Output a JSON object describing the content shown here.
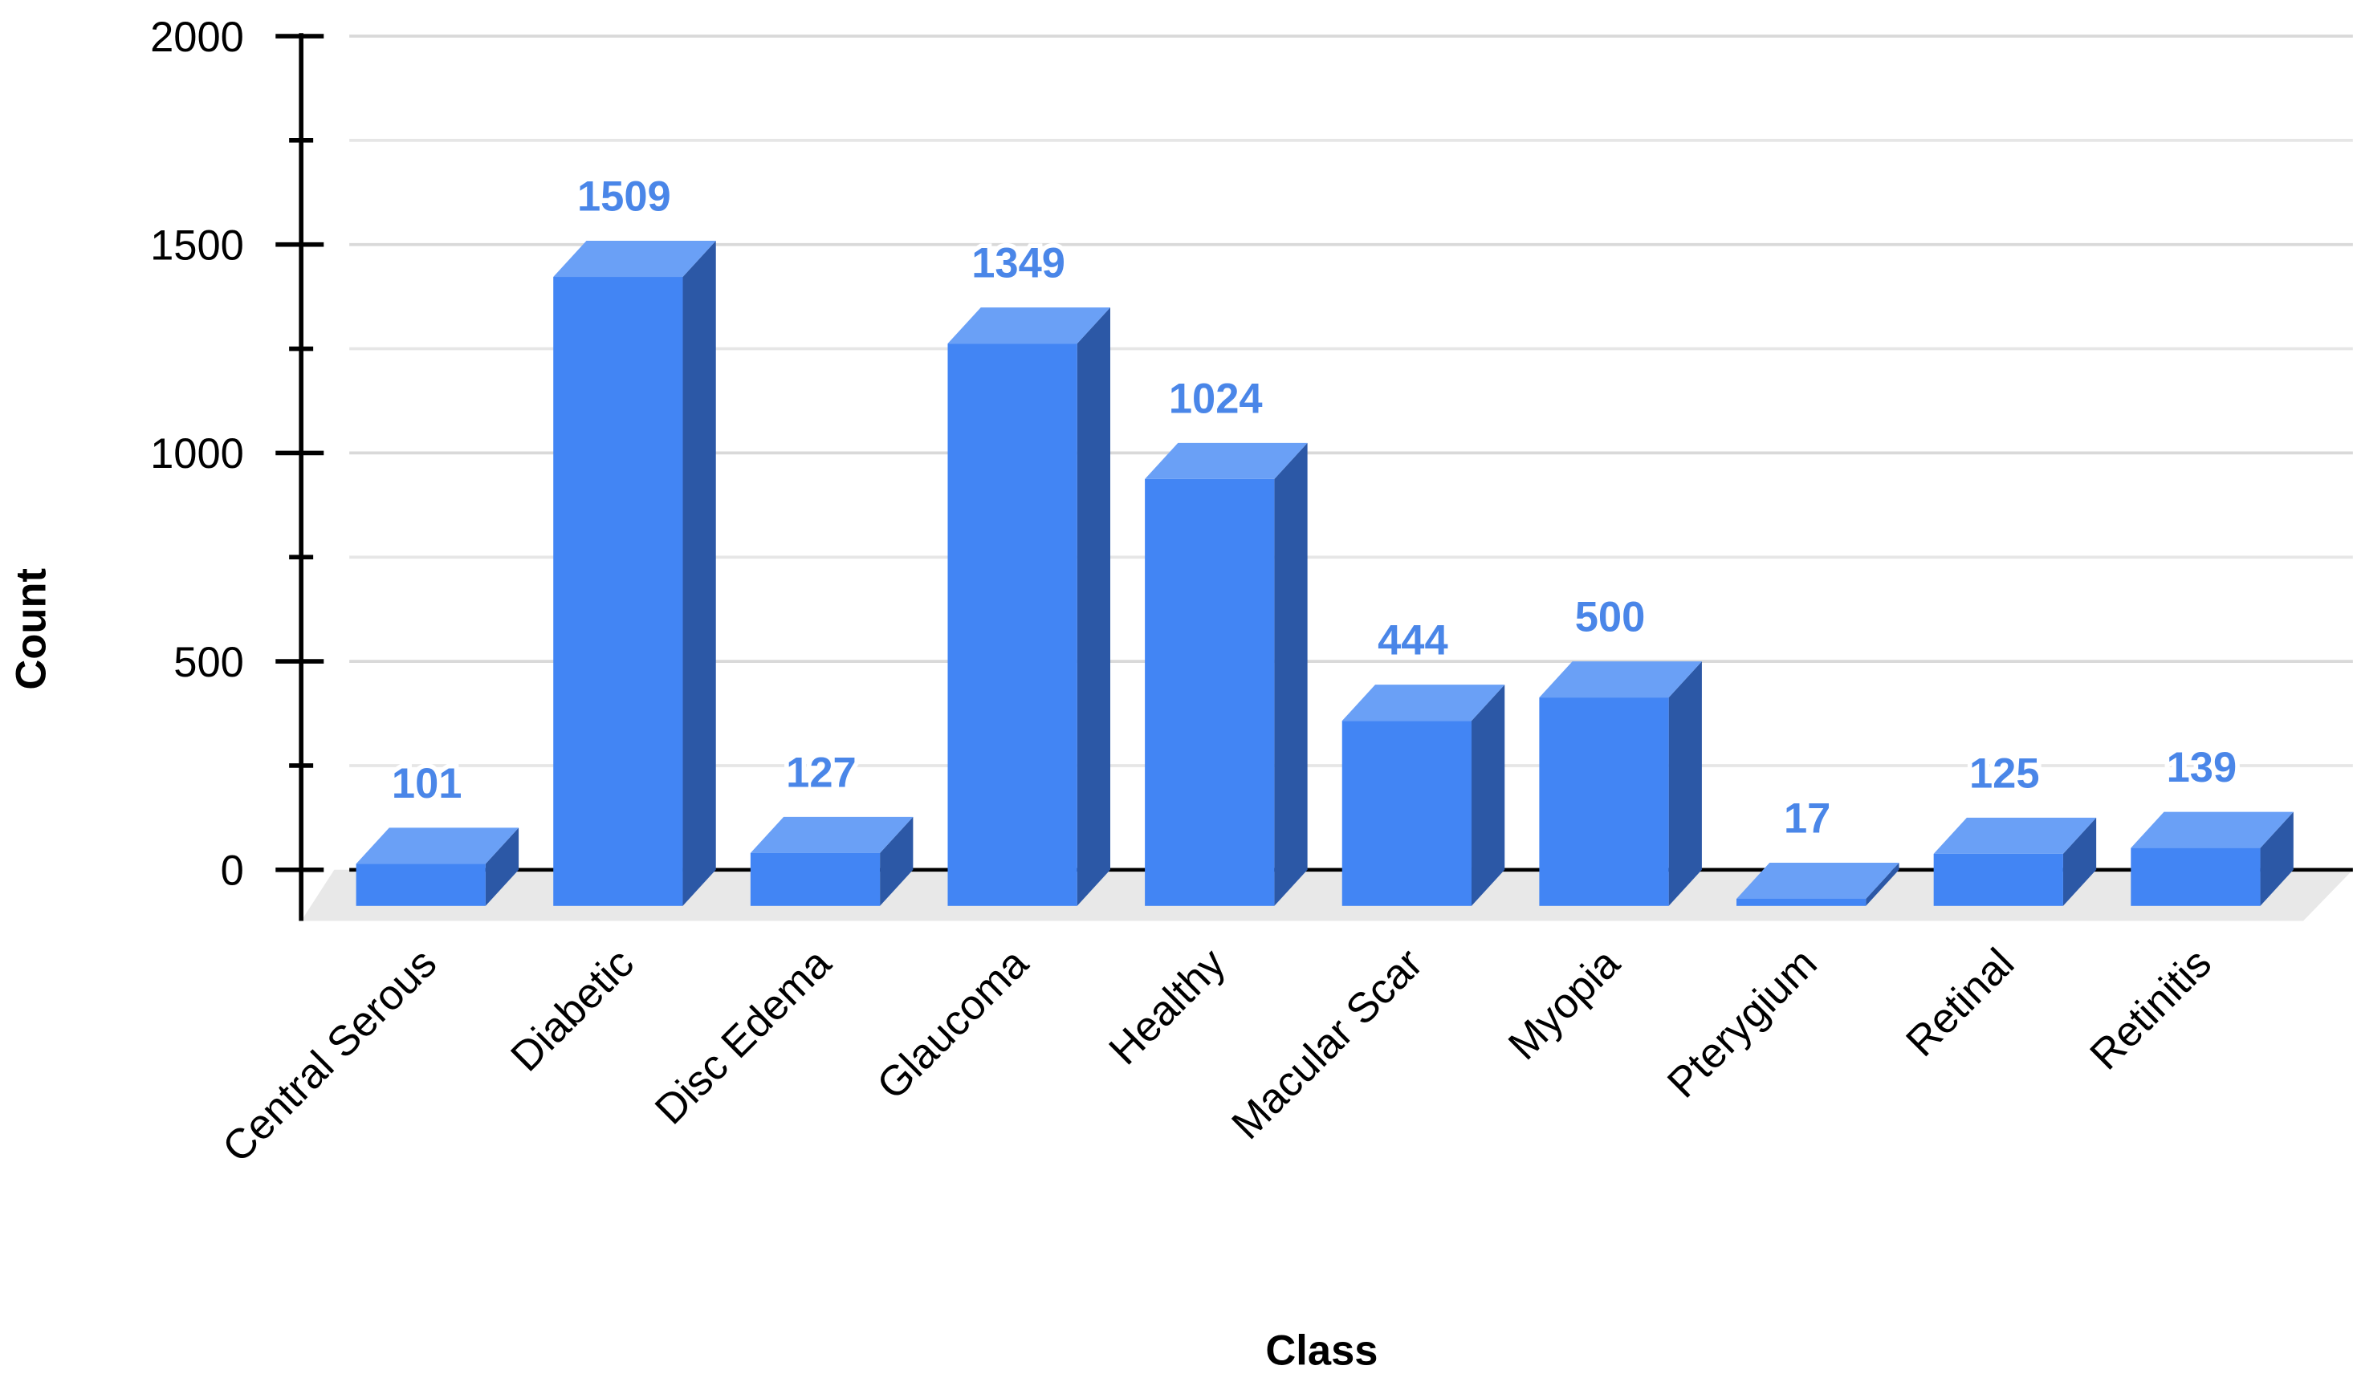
{
  "chart_data": {
    "type": "bar3d",
    "x_label": "Class",
    "y_label": "Count",
    "categories": [
      "Central Serous",
      "Diabetic",
      "Disc Edema",
      "Glaucoma",
      "Healthy",
      "Macular Scar",
      "Myopia",
      "Pterygium",
      "Retinal",
      "Retinitis"
    ],
    "values": [
      101,
      1509,
      127,
      1349,
      1024,
      444,
      500,
      17,
      125,
      139
    ],
    "color": "#4285f4",
    "ylim": [
      0,
      2000
    ],
    "yticks": [
      0,
      500,
      1000,
      1500,
      2000
    ],
    "grid": true
  }
}
